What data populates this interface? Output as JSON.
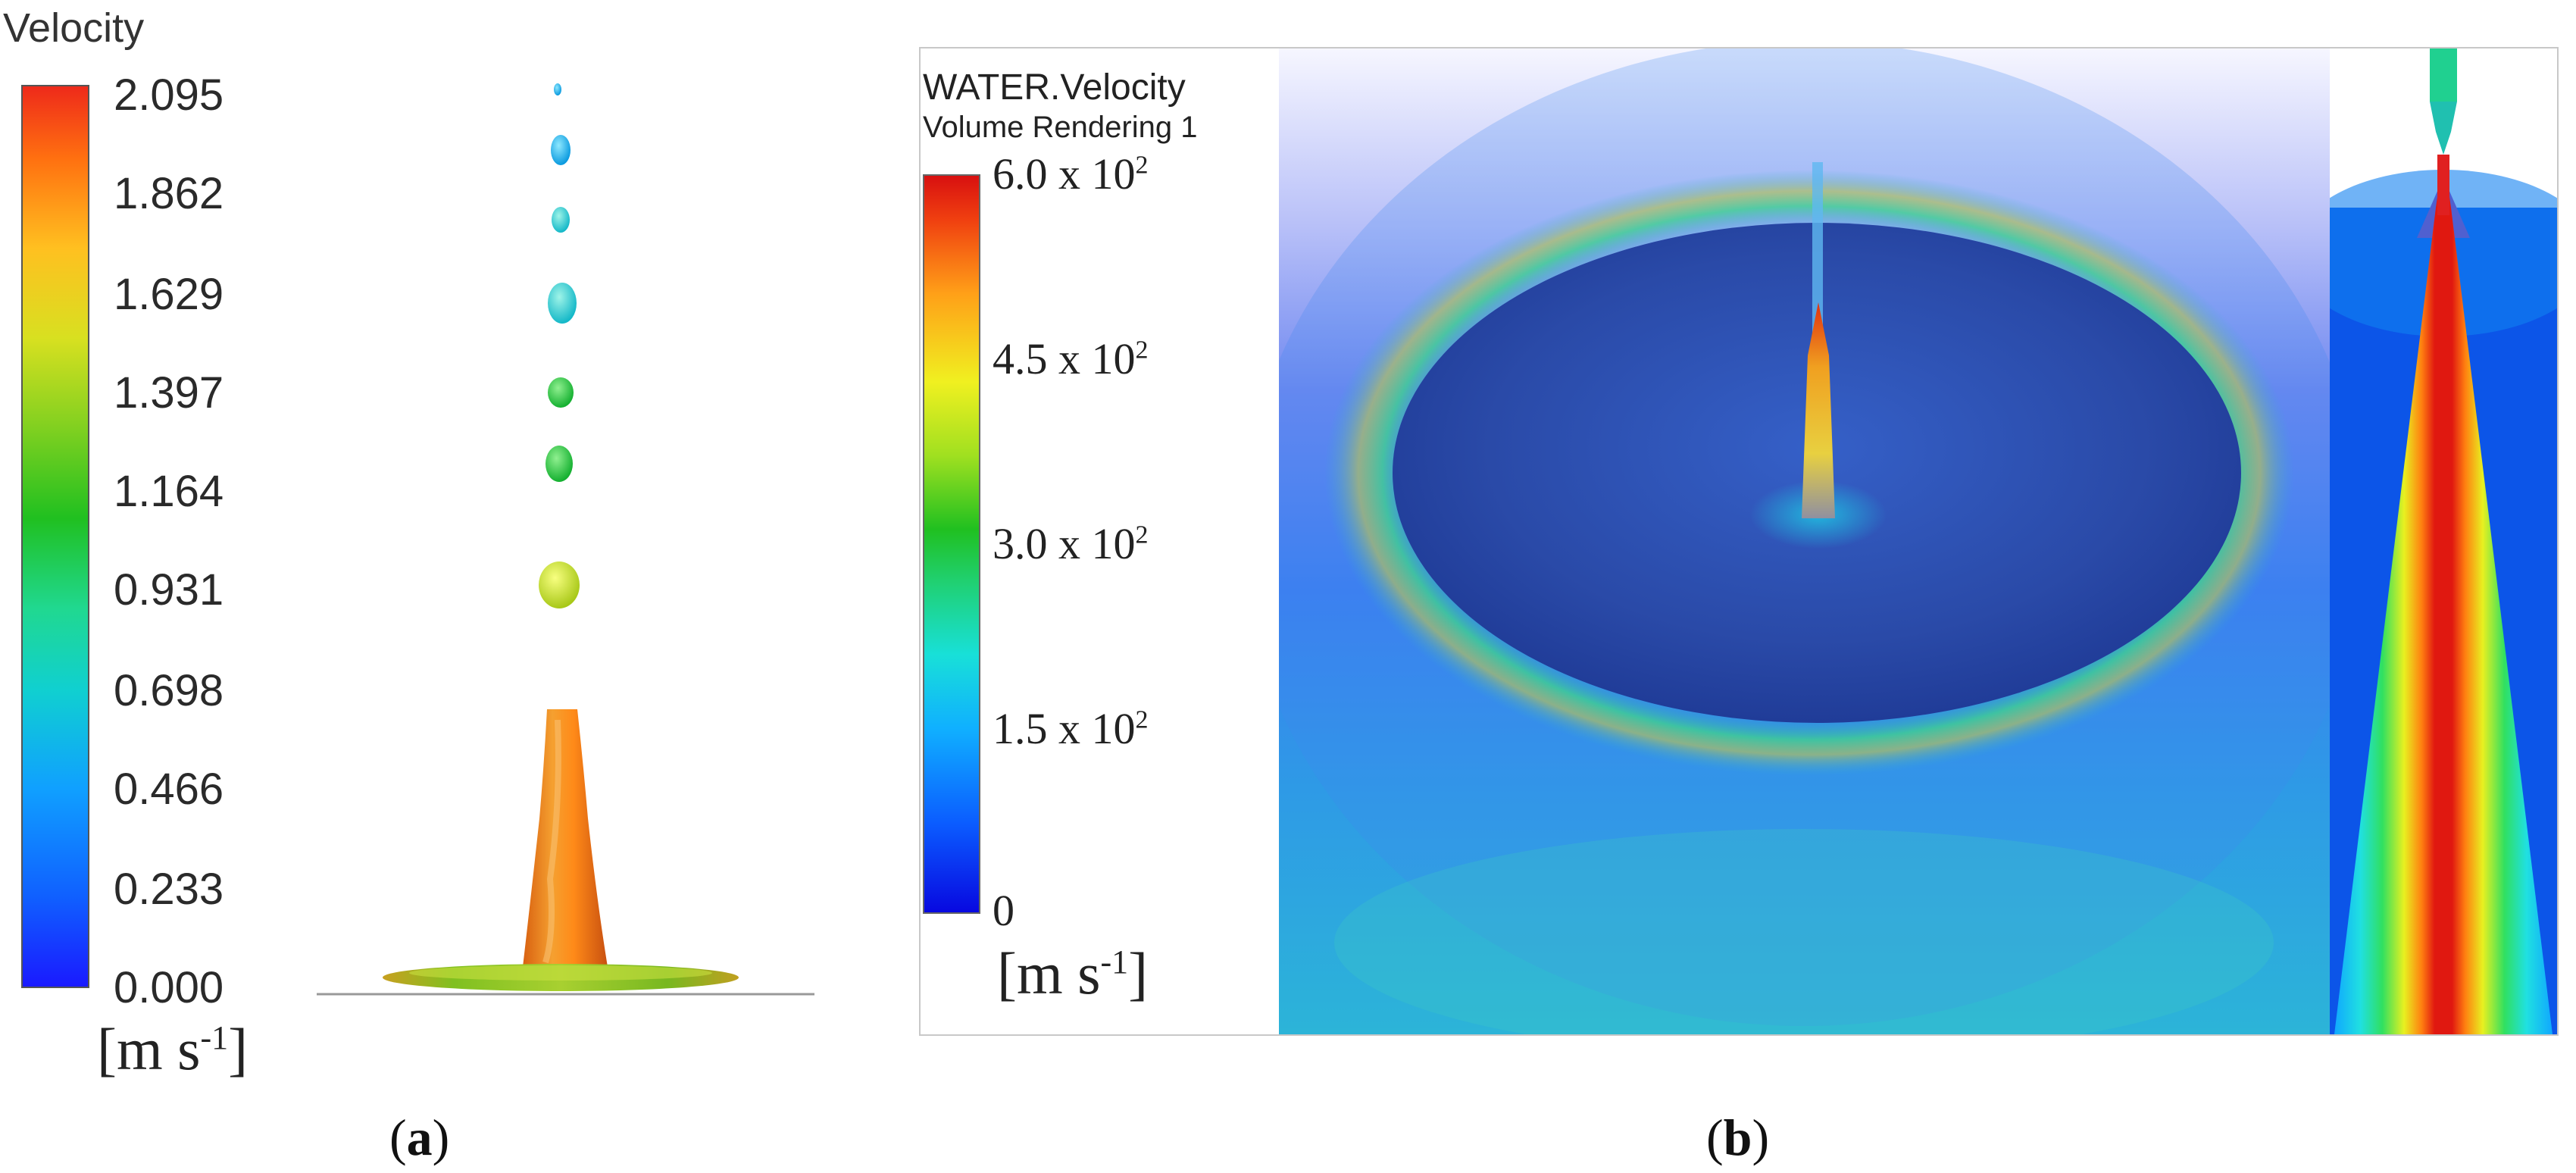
{
  "panel_a": {
    "legend_title": "Velocity",
    "ticks": [
      "2.095",
      "1.862",
      "1.629",
      "1.397",
      "1.164",
      "0.931",
      "0.698",
      "0.466",
      "0.233",
      "0.000"
    ],
    "unit_base": "[m s",
    "unit_exp": "-1",
    "unit_close": "]",
    "caption_label": "a"
  },
  "panel_b": {
    "legend_title": "WATER.Velocity",
    "legend_subtitle": "Volume Rendering 1",
    "ticks": [
      {
        "mantissa": "6.0 x 10",
        "exp": "2"
      },
      {
        "mantissa": "4.5 x 10",
        "exp": "2"
      },
      {
        "mantissa": "3.0 x 10",
        "exp": "2"
      },
      {
        "mantissa": "1.5 x 10",
        "exp": "2"
      },
      {
        "mantissa": "0",
        "exp": ""
      }
    ],
    "unit_base": "[m s",
    "unit_exp": "-1",
    "unit_close": "]",
    "caption_label": "b"
  },
  "colors": {
    "max_red": "#ee2a1a",
    "min_blue": "#1a1aff"
  }
}
